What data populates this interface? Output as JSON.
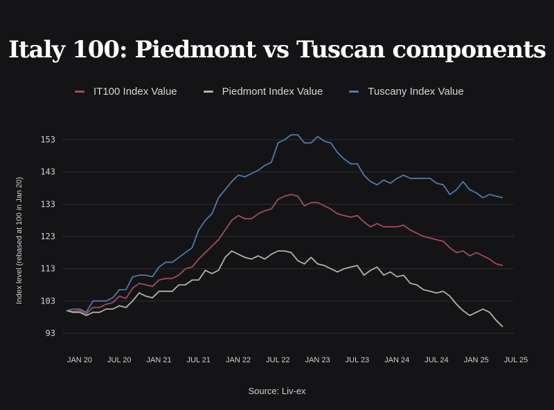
{
  "chart_data": {
    "type": "line",
    "title": "Italy 100: Piedmont vs Tuscan components",
    "ylabel": "Index level (rebased at 100 in Jan 20)",
    "source": "Source: Liv-ex",
    "ylim": [
      90,
      156
    ],
    "y_ticks": [
      93,
      103,
      113,
      123,
      133,
      143,
      153
    ],
    "x_tick_labels": [
      "JAN 20",
      "JUL 20",
      "JAN 21",
      "JUL 21",
      "JAN 22",
      "JUL 22",
      "JAN 23",
      "JUL 23",
      "JAN 24",
      "JUL 24",
      "JAN 25",
      "JUL 25"
    ],
    "x_tick_index": [
      0,
      6,
      12,
      18,
      24,
      30,
      36,
      42,
      48,
      54,
      60,
      66
    ],
    "grid": "horizontal",
    "legend_position": "top",
    "colors": {
      "IT100 Index Value": "#a14d5f",
      "Piedmont Index Value": "#b3b3a8",
      "Tuscany Index Value": "#5478a8"
    },
    "series": [
      {
        "name": "IT100 Index Value",
        "values": [
          100,
          99.8,
          100,
          99,
          101,
          101,
          102,
          102.5,
          104.5,
          103.8,
          107,
          108.5,
          108,
          107.5,
          109.5,
          110,
          110,
          111,
          113,
          113.5,
          116,
          118,
          120,
          122,
          125,
          128,
          129.5,
          128.5,
          128.5,
          130,
          131,
          131.5,
          134.5,
          135.5,
          136,
          135.5,
          132.5,
          133.5,
          133.5,
          132.5,
          131.5,
          130,
          129.5,
          129,
          129.5,
          127.5,
          126,
          127,
          126,
          126,
          126,
          126.5,
          125,
          124,
          123,
          122.5,
          122,
          121.5,
          119.5,
          118,
          118.5,
          117,
          118,
          117,
          116,
          114.5,
          114
        ]
      },
      {
        "name": "Piedmont Index Value",
        "values": [
          100,
          99.5,
          99.5,
          98.5,
          99.5,
          99.5,
          100.5,
          100.5,
          101.5,
          101,
          103,
          105.5,
          104.5,
          104,
          106,
          106,
          106,
          108,
          108,
          109.5,
          109.5,
          112.5,
          111.5,
          112.5,
          116.5,
          118.5,
          117.5,
          116.5,
          116,
          117,
          116,
          117.5,
          118.5,
          118.5,
          118,
          115.5,
          114.5,
          116.5,
          114.5,
          114,
          113,
          112,
          113,
          113.5,
          114,
          111,
          112.5,
          113.5,
          111,
          112,
          110.5,
          111,
          108.5,
          108,
          106.5,
          106,
          105.5,
          106,
          104.5,
          102,
          100,
          98.5,
          99.5,
          100.5,
          99.5,
          97,
          95
        ]
      },
      {
        "name": "Tuscany Index Value",
        "values": [
          100,
          100.5,
          100.5,
          99.5,
          103,
          103,
          103,
          104,
          106.5,
          106.5,
          110.5,
          111,
          111,
          110.5,
          113.5,
          115,
          115,
          116.5,
          118,
          119.5,
          125,
          128,
          130,
          135,
          137.5,
          140,
          142,
          141.5,
          142.5,
          143.5,
          145,
          146,
          152,
          153,
          154.5,
          154.5,
          152,
          152,
          154,
          152.5,
          152,
          149,
          147,
          145.5,
          145.5,
          142,
          140,
          139,
          140.5,
          139.5,
          141,
          142,
          141,
          141,
          141,
          141,
          139.5,
          139,
          136,
          137.5,
          140,
          137.5,
          136.5,
          135,
          136,
          135.5,
          135
        ]
      }
    ]
  }
}
